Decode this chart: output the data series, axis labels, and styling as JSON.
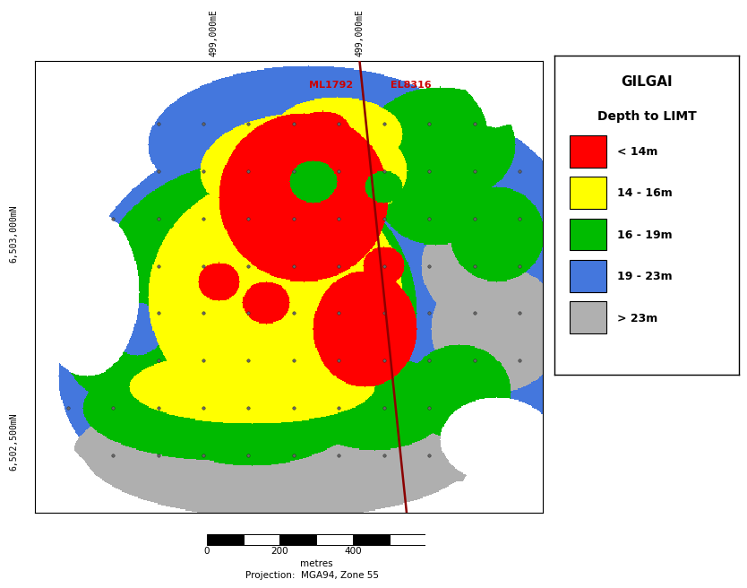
{
  "legend_labels": [
    "< 14m",
    "14 - 16m",
    "16 - 19m",
    "19 - 23m",
    "> 23m"
  ],
  "legend_colors": [
    "#FF0000",
    "#FFFF00",
    "#00BB00",
    "#4477DD",
    "#B0B0B0"
  ],
  "grid_color": "#BBBBBB",
  "background_color": "#FFFFFF",
  "ml1792_label": "ML1792",
  "el8316_label": "EL8316",
  "label_499left": "499,000mE",
  "label_499right": "499,000mE",
  "label_6503": "6,503,000mN",
  "label_6502": "6,502,500mN",
  "scalebar_label": "metres",
  "projection_label": "Projection:  MGA94, Zone 55",
  "scalebar_values": [
    "0",
    "200",
    "400"
  ],
  "dot_color": "#666666",
  "line_color": "#8B0000",
  "legend_title1": "GILGAI",
  "legend_title2": "Depth to LIMT",
  "legend_title_fontsize": 11,
  "legend_fontsize": 9
}
